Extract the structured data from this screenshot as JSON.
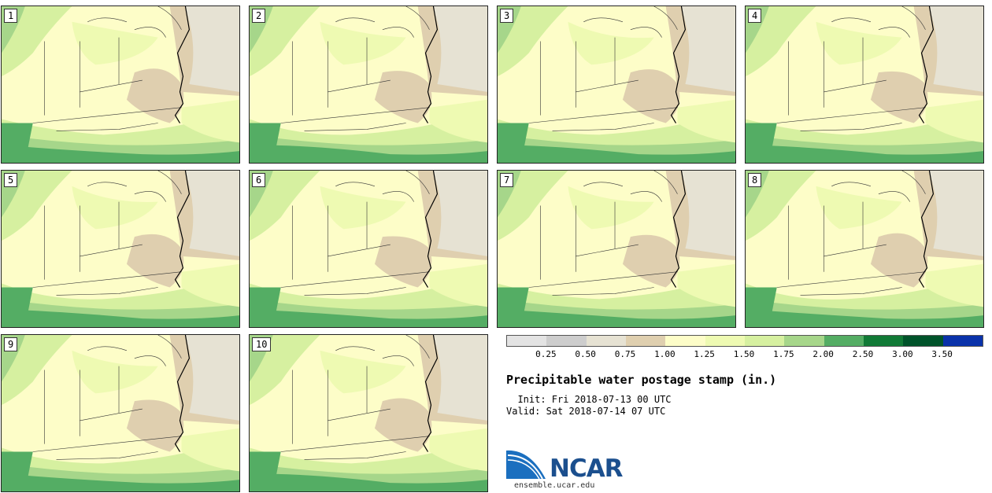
{
  "panels": [
    {
      "label": "1"
    },
    {
      "label": "2"
    },
    {
      "label": "3"
    },
    {
      "label": "4"
    },
    {
      "label": "5"
    },
    {
      "label": "6"
    },
    {
      "label": "7"
    },
    {
      "label": "8"
    },
    {
      "label": "9"
    },
    {
      "label": "10"
    }
  ],
  "colorbar": {
    "colors": [
      "#e3e3e3",
      "#cdcdcd",
      "#e6e2d3",
      "#dfcfaf",
      "#fdfdc8",
      "#eefab2",
      "#d6f0a0",
      "#a6d68a",
      "#54ad64",
      "#117a36",
      "#00532a",
      "#0a32aa"
    ],
    "tick_labels": [
      "0.25",
      "0.50",
      "0.75",
      "1.00",
      "1.25",
      "1.50",
      "1.75",
      "2.00",
      "2.50",
      "3.00",
      "3.50"
    ]
  },
  "title": "Precipitable water postage stamp (in.)",
  "init_line": "  Init: Fri 2018-07-13 00 UTC",
  "valid_line": "Valid: Sat 2018-07-14 07 UTC",
  "logo": {
    "name": "NCAR",
    "url_text": "ensemble.ucar.edu"
  }
}
